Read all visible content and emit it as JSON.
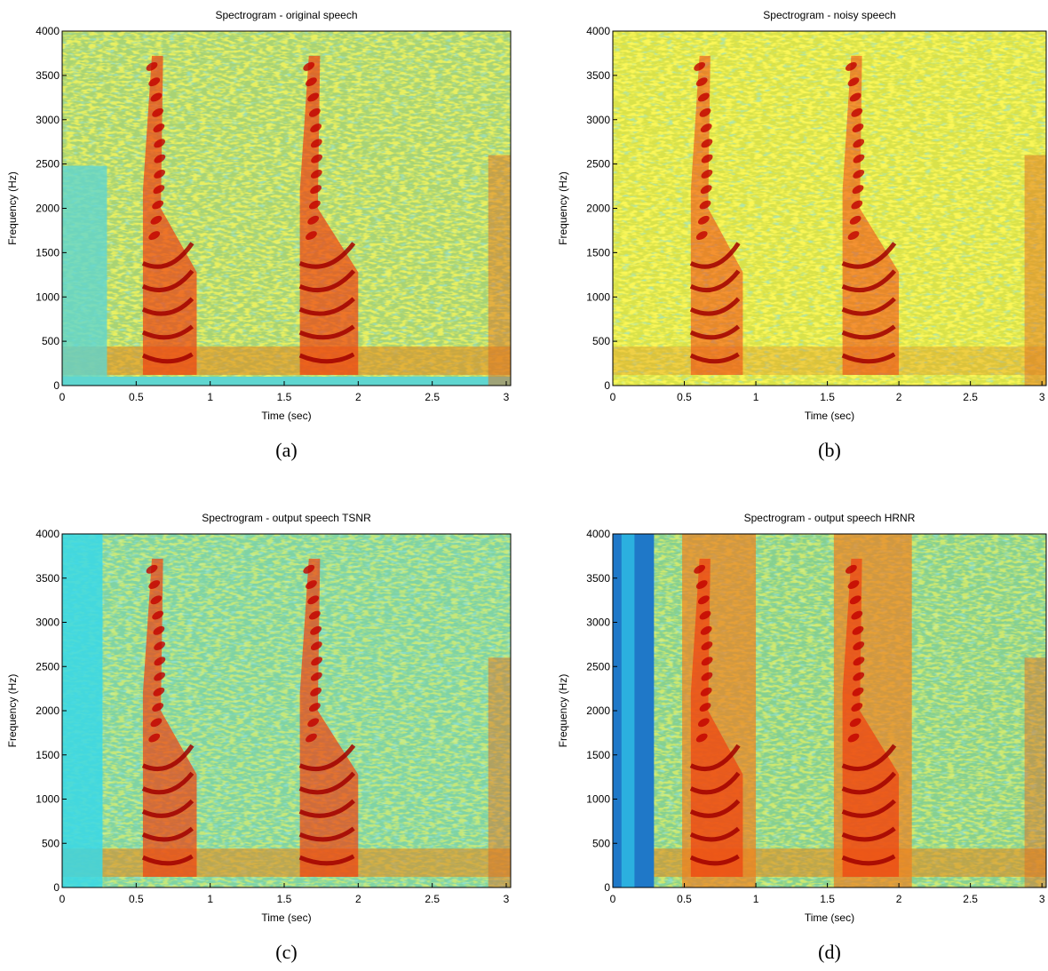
{
  "chart_data": [
    {
      "type": "spectrogram",
      "title": "Spectrogram - original speech",
      "xlabel": "Time (sec)",
      "ylabel": "Frequency (Hz)",
      "caption": "(a)",
      "xlim": [
        0,
        3.03
      ],
      "xticks": [
        0,
        0.5,
        1,
        1.5,
        2,
        2.5,
        3
      ],
      "ylim": [
        0,
        4000
      ],
      "yticks": [
        0,
        500,
        1000,
        1500,
        2000,
        2500,
        3000,
        3500,
        4000
      ]
    },
    {
      "type": "spectrogram",
      "title": "Spectrogram - noisy speech",
      "xlabel": "Time (sec)",
      "ylabel": "Frequency (Hz)",
      "caption": "(b)",
      "xlim": [
        0,
        3.03
      ],
      "xticks": [
        0,
        0.5,
        1,
        1.5,
        2,
        2.5,
        3
      ],
      "ylim": [
        0,
        4000
      ],
      "yticks": [
        0,
        500,
        1000,
        1500,
        2000,
        2500,
        3000,
        3500,
        4000
      ]
    },
    {
      "type": "spectrogram",
      "title": "Spectrogram - output speech TSNR",
      "xlabel": "Time (sec)",
      "ylabel": "Frequency (Hz)",
      "caption": "(c)",
      "xlim": [
        0,
        3.03
      ],
      "xticks": [
        0,
        0.5,
        1,
        1.5,
        2,
        2.5,
        3
      ],
      "ylim": [
        0,
        4000
      ],
      "yticks": [
        0,
        500,
        1000,
        1500,
        2000,
        2500,
        3000,
        3500,
        4000
      ]
    },
    {
      "type": "spectrogram",
      "title": "Spectrogram - output speech HRNR",
      "xlabel": "Time (sec)",
      "ylabel": "Frequency (Hz)",
      "caption": "(d)",
      "xlim": [
        0,
        3.03
      ],
      "xticks": [
        0,
        0.5,
        1,
        1.5,
        2,
        2.5,
        3
      ],
      "ylim": [
        0,
        4000
      ],
      "yticks": [
        0,
        500,
        1000,
        1500,
        2000,
        2500,
        3000,
        3500,
        4000
      ]
    }
  ]
}
